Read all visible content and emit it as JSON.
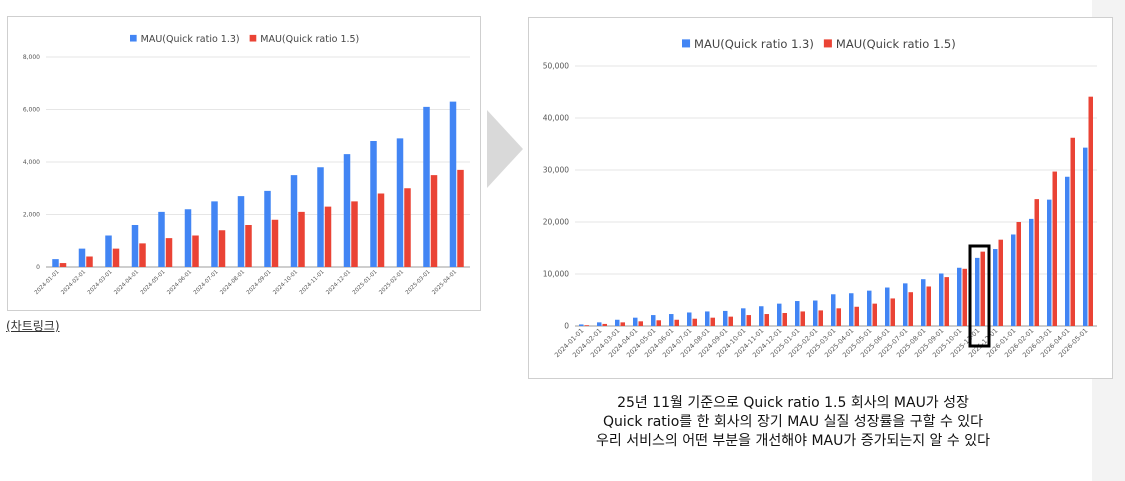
{
  "colors": {
    "series1": "#4285f4",
    "series2": "#ea4335",
    "grid": "#e6e6e6",
    "axis": "#555555",
    "arrow": "#d9d9d9"
  },
  "chart_link": "(차트링크)",
  "caption": [
    "25년 11월 기준으로 Quick ratio 1.5 회사의 MAU가 성장",
    "Quick ratio를 한 회사의 장기 MAU 실질 성장률을 구할 수 있다",
    "우리 서비스의 어떤 부분을 개선해야 MAU가 증가되는지 알 수 있다"
  ],
  "chart_data": [
    {
      "type": "bar",
      "legend_position": "top",
      "grid": true,
      "ylim": [
        0,
        8000
      ],
      "yticks": [
        "0",
        "2,000",
        "4,000",
        "6,000",
        "8,000"
      ],
      "categories": [
        "2024-01-01",
        "2024-02-01",
        "2024-03-01",
        "2024-04-01",
        "2024-05-01",
        "2024-06-01",
        "2024-07-01",
        "2024-08-01",
        "2024-09-01",
        "2024-10-01",
        "2024-11-01",
        "2024-12-01",
        "2025-01-01",
        "2025-02-01",
        "2025-03-01",
        "2025-04-01"
      ],
      "series": [
        {
          "name": "MAU(Quick ratio 1.3)",
          "values": [
            300,
            700,
            1200,
            1600,
            2100,
            2200,
            2500,
            2700,
            2900,
            3500,
            3800,
            4300,
            4800,
            4900,
            6100,
            6300
          ]
        },
        {
          "name": "MAU(Quick ratio 1.5)",
          "values": [
            150,
            400,
            700,
            900,
            1100,
            1200,
            1400,
            1600,
            1800,
            2100,
            2300,
            2500,
            2800,
            3000,
            3500,
            3700
          ]
        }
      ]
    },
    {
      "type": "bar",
      "legend_position": "top",
      "grid": true,
      "ylim": [
        0,
        50000
      ],
      "yticks": [
        "0",
        "10,000",
        "20,000",
        "30,000",
        "40,000",
        "50,000"
      ],
      "highlight": "2025-11-01",
      "categories": [
        "2024-01-01",
        "2024-02-01",
        "2024-03-01",
        "2024-04-01",
        "2024-05-01",
        "2024-06-01",
        "2024-07-01",
        "2024-08-01",
        "2024-09-01",
        "2024-10-01",
        "2024-11-01",
        "2024-12-01",
        "2025-01-01",
        "2025-02-01",
        "2025-03-01",
        "2025-04-01",
        "2025-05-01",
        "2025-06-01",
        "2025-07-01",
        "2025-08-01",
        "2025-09-01",
        "2025-10-01",
        "2025-11-01",
        "2025-12-01",
        "2026-01-01",
        "2026-02-01",
        "2026-03-01",
        "2026-04-01",
        "2026-05-01"
      ],
      "series": [
        {
          "name": "MAU(Quick ratio 1.3)",
          "values": [
            300,
            700,
            1200,
            1600,
            2100,
            2300,
            2600,
            2800,
            2900,
            3400,
            3800,
            4300,
            4800,
            4900,
            6100,
            6300,
            6800,
            7400,
            8200,
            9000,
            10100,
            11200,
            13100,
            14800,
            17600,
            20600,
            24300,
            28700,
            34300
          ]
        },
        {
          "name": "MAU(Quick ratio 1.5)",
          "values": [
            150,
            400,
            700,
            900,
            1100,
            1200,
            1400,
            1600,
            1800,
            2100,
            2300,
            2500,
            2800,
            3000,
            3400,
            3700,
            4300,
            5300,
            6500,
            7600,
            9400,
            11000,
            14300,
            16600,
            20000,
            24400,
            29700,
            36200,
            44100
          ]
        }
      ]
    }
  ]
}
